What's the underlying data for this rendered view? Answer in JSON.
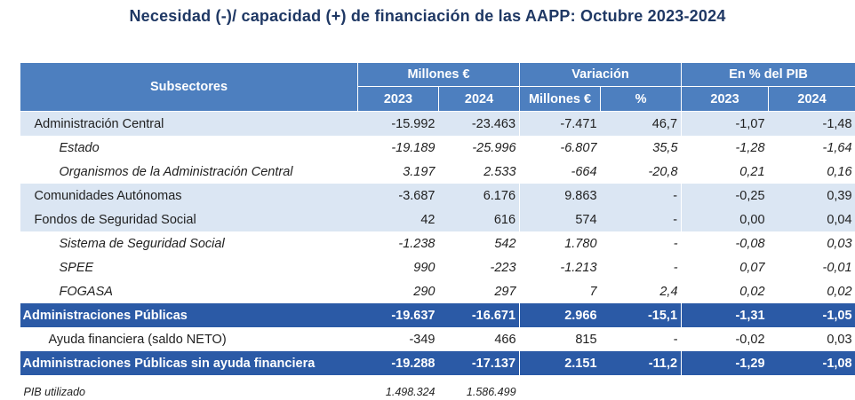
{
  "title": "Necesidad (-)/ capacidad (+) de financiación de las AAPP:  Octubre 2023-2024",
  "header": {
    "subsectores": "Subsectores",
    "millones_group": "Millones €",
    "variacion_group": "Variación",
    "pib_group": "En % del PIB",
    "col_2023": "2023",
    "col_2024": "2024",
    "col_var_millones": "Millones €",
    "col_var_pct": "%",
    "col_pib_2023": "2023",
    "col_pib_2024": "2024"
  },
  "rows": [
    {
      "label": "Administración Central",
      "m2023": "-15.992",
      "m2024": "-23.463",
      "var_m": "-7.471",
      "var_pct": "46,7",
      "pib2023": "-1,07",
      "pib2024": "-1,48"
    },
    {
      "label": "Estado",
      "m2023": "-19.189",
      "m2024": "-25.996",
      "var_m": "-6.807",
      "var_pct": "35,5",
      "pib2023": "-1,28",
      "pib2024": "-1,64"
    },
    {
      "label": "Organismos de la Administración Central",
      "m2023": "3.197",
      "m2024": "2.533",
      "var_m": "-664",
      "var_pct": "-20,8",
      "pib2023": "0,21",
      "pib2024": "0,16"
    },
    {
      "label": "Comunidades Autónomas",
      "m2023": "-3.687",
      "m2024": "6.176",
      "var_m": "9.863",
      "var_pct": "-",
      "pib2023": "-0,25",
      "pib2024": "0,39"
    },
    {
      "label": "Fondos de Seguridad Social",
      "m2023": "42",
      "m2024": "616",
      "var_m": "574",
      "var_pct": "-",
      "pib2023": "0,00",
      "pib2024": "0,04"
    },
    {
      "label": "Sistema de Seguridad Social",
      "m2023": "-1.238",
      "m2024": "542",
      "var_m": "1.780",
      "var_pct": "-",
      "pib2023": "-0,08",
      "pib2024": "0,03"
    },
    {
      "label": "SPEE",
      "m2023": "990",
      "m2024": "-223",
      "var_m": "-1.213",
      "var_pct": "-",
      "pib2023": "0,07",
      "pib2024": "-0,01"
    },
    {
      "label": "FOGASA",
      "m2023": "290",
      "m2024": "297",
      "var_m": "7",
      "var_pct": "2,4",
      "pib2023": "0,02",
      "pib2024": "0,02"
    },
    {
      "label": "Administraciones Públicas",
      "m2023": "-19.637",
      "m2024": "-16.671",
      "var_m": "2.966",
      "var_pct": "-15,1",
      "pib2023": "-1,31",
      "pib2024": "-1,05"
    },
    {
      "label": "Ayuda financiera (saldo NETO)",
      "m2023": "-349",
      "m2024": "466",
      "var_m": "815",
      "var_pct": "-",
      "pib2023": "-0,02",
      "pib2024": "0,03"
    },
    {
      "label": "Administraciones Públicas sin  ayuda financiera",
      "m2023": "-19.288",
      "m2024": "-17.137",
      "var_m": "2.151",
      "var_pct": "-11,2",
      "pib2023": "-1,29",
      "pib2024": "-1,08"
    }
  ],
  "footer": {
    "label": "PIB utilizado",
    "m2023": "1.498.324",
    "m2024": "1.586.499"
  }
}
